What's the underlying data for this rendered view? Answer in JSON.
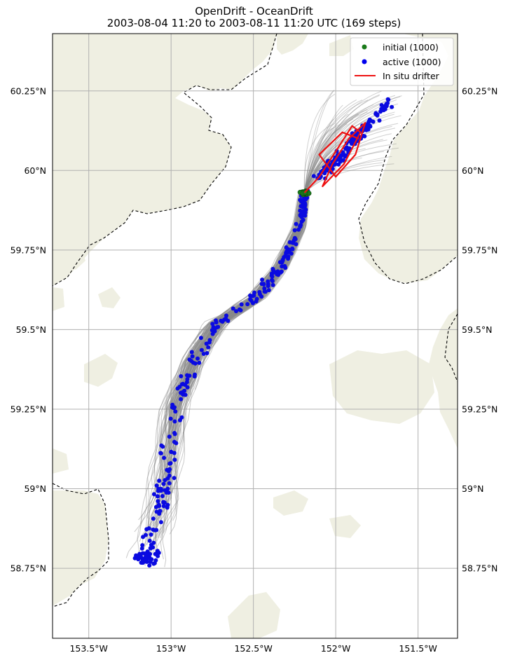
{
  "title": "OpenDrift - OceanDrift",
  "subtitle": "2003-08-04 11:20 to 2003-08-11 11:20 UTC (169 steps)",
  "map": {
    "lon_range": [
      -153.72,
      -151.26
    ],
    "lat_range": [
      58.53,
      60.43
    ],
    "land_color": "#efefe2",
    "ocean_color": "#ffffff",
    "grid_color": "#b0b0b0",
    "border_style": "dashed"
  },
  "axes": {
    "lon_ticks": [
      -153.5,
      -153.0,
      -152.5,
      -152.0,
      -151.5
    ],
    "lon_labels": [
      "153.5°W",
      "153°W",
      "152.5°W",
      "152°W",
      "151.5°W"
    ],
    "lat_ticks": [
      60.25,
      60.0,
      59.75,
      59.5,
      59.25,
      59.0,
      58.75
    ],
    "lat_labels": [
      "60.25°N",
      "60°N",
      "59.75°N",
      "59.5°N",
      "59.25°N",
      "59°N",
      "58.75°N"
    ]
  },
  "legend": {
    "position": "top-right",
    "items": [
      {
        "label": "initial (1000)",
        "marker": "dot",
        "color": "#1a7a1a"
      },
      {
        "label": "active (1000)",
        "marker": "dot",
        "color": "#0000ee"
      },
      {
        "label": "In situ drifter",
        "marker": "line",
        "color": "#ee1111"
      }
    ]
  },
  "drift": {
    "trajectory_color": "#8a8a8a",
    "active_color": "#0a0ae0",
    "initial_color": "#1a7a1a",
    "drifter_color": "#ee1111",
    "initial_center": [
      -152.19,
      59.93
    ],
    "centerline": [
      [
        -152.19,
        59.93
      ],
      [
        -152.22,
        59.82
      ],
      [
        -152.33,
        59.7
      ],
      [
        -152.48,
        59.6
      ],
      [
        -152.72,
        59.52
      ],
      [
        -152.87,
        59.4
      ],
      [
        -152.98,
        59.25
      ],
      [
        -153.02,
        59.1
      ],
      [
        -153.05,
        58.97
      ],
      [
        -153.12,
        58.85
      ],
      [
        -153.15,
        58.76
      ]
    ],
    "drifter_track": [
      [
        -152.19,
        59.93
      ],
      [
        -152.1,
        59.98
      ],
      [
        -152.0,
        60.06
      ],
      [
        -151.9,
        60.14
      ],
      [
        -151.85,
        60.12
      ],
      [
        -151.95,
        60.02
      ],
      [
        -152.08,
        59.95
      ],
      [
        -152.02,
        60.02
      ],
      [
        -151.92,
        60.1
      ],
      [
        -151.82,
        60.15
      ],
      [
        -151.88,
        60.05
      ],
      [
        -152.0,
        59.98
      ],
      [
        -152.1,
        60.05
      ],
      [
        -151.96,
        60.12
      ],
      [
        -151.86,
        60.1
      ]
    ]
  }
}
